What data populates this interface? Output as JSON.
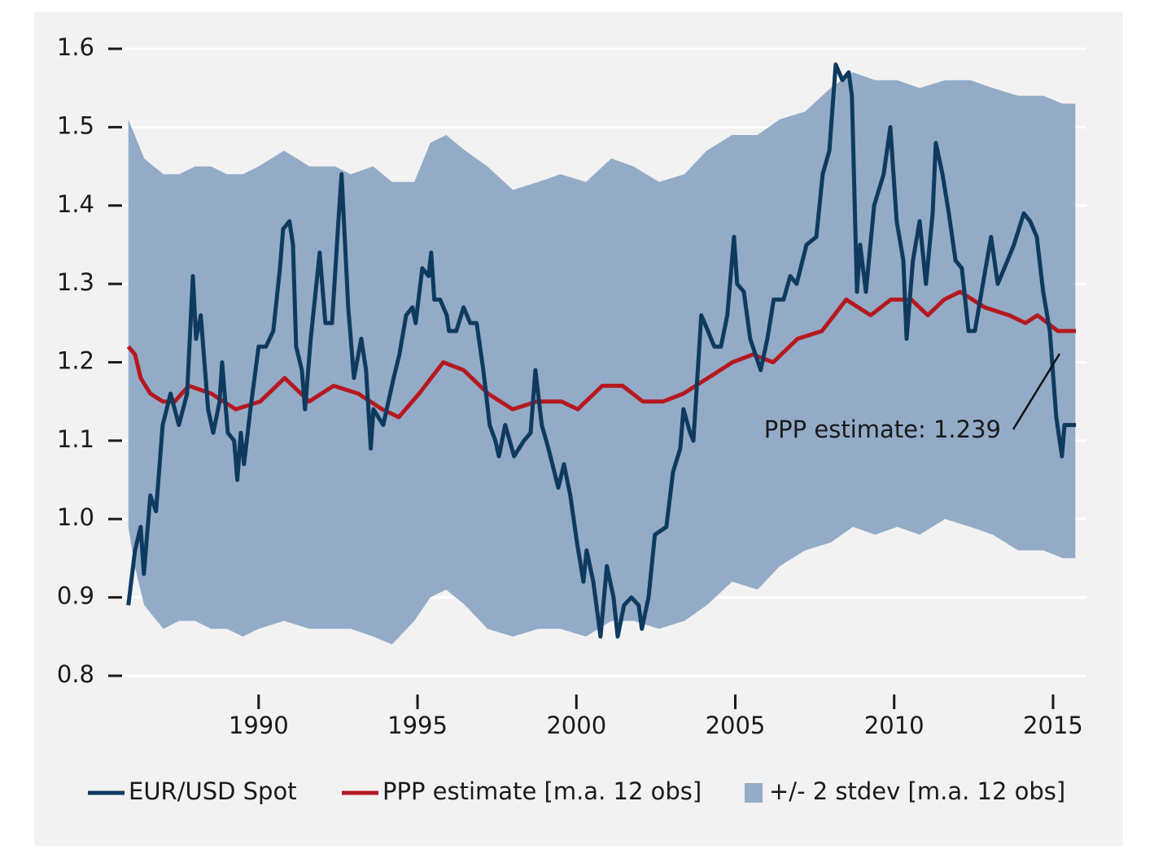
{
  "chart_data": {
    "type": "line",
    "xlim": [
      1985.6,
      2016.0
    ],
    "ylim": [
      0.77,
      1.63
    ],
    "xticks": [
      1990,
      1995,
      2000,
      2005,
      2010,
      2015
    ],
    "yticks": [
      0.8,
      0.9,
      {
        "value": 1.0,
        "label": "1.0"
      },
      1.1,
      1.2,
      1.3,
      1.4,
      1.5,
      1.6
    ],
    "grid": true,
    "legend": "bottom",
    "band": {
      "name": "+/- 2 stdev [m.a. 12 obs]",
      "color": "#93abc7",
      "x": [
        1985.9,
        1986.1,
        1986.4,
        1987.0,
        1987.5,
        1988.0,
        1988.5,
        1989.0,
        1989.5,
        1990.0,
        1990.8,
        1991.6,
        1992.4,
        1992.9,
        1993.6,
        1994.2,
        1994.9,
        1995.4,
        1995.9,
        1996.5,
        1997.2,
        1998.0,
        1998.8,
        1999.5,
        2000.3,
        2001.1,
        2001.8,
        2002.6,
        2003.4,
        2004.1,
        2004.9,
        2005.7,
        2006.4,
        2007.2,
        2008.0,
        2008.7,
        2009.4,
        2010.1,
        2010.8,
        2011.6,
        2012.4,
        2013.1,
        2013.9,
        2014.7,
        2015.3,
        2015.7
      ],
      "upper": [
        1.51,
        1.49,
        1.46,
        1.44,
        1.44,
        1.45,
        1.45,
        1.44,
        1.44,
        1.45,
        1.47,
        1.45,
        1.45,
        1.44,
        1.45,
        1.43,
        1.43,
        1.48,
        1.49,
        1.47,
        1.45,
        1.42,
        1.43,
        1.44,
        1.43,
        1.46,
        1.45,
        1.43,
        1.44,
        1.47,
        1.49,
        1.49,
        1.51,
        1.52,
        1.55,
        1.57,
        1.56,
        1.56,
        1.55,
        1.56,
        1.56,
        1.55,
        1.54,
        1.54,
        1.53,
        1.53
      ],
      "lower": [
        0.99,
        0.94,
        0.89,
        0.86,
        0.87,
        0.87,
        0.86,
        0.86,
        0.85,
        0.86,
        0.87,
        0.86,
        0.86,
        0.86,
        0.85,
        0.84,
        0.87,
        0.9,
        0.91,
        0.89,
        0.86,
        0.85,
        0.86,
        0.86,
        0.85,
        0.87,
        0.87,
        0.86,
        0.87,
        0.89,
        0.92,
        0.91,
        0.94,
        0.96,
        0.97,
        0.99,
        0.98,
        0.99,
        0.98,
        1.0,
        0.99,
        0.98,
        0.96,
        0.96,
        0.95,
        0.95
      ]
    },
    "series": [
      {
        "name": "EUR/USD Spot",
        "color": "#0f3a5f",
        "x": [
          1985.9,
          1986.11,
          1986.29,
          1986.39,
          1986.59,
          1986.77,
          1986.98,
          1987.23,
          1987.49,
          1987.75,
          1987.93,
          1988.03,
          1988.18,
          1988.41,
          1988.57,
          1988.77,
          1988.85,
          1989.03,
          1989.23,
          1989.33,
          1989.44,
          1989.54,
          1989.74,
          1990.0,
          1990.23,
          1990.46,
          1990.67,
          1990.77,
          1990.97,
          1991.08,
          1991.18,
          1991.36,
          1991.46,
          1991.64,
          1991.92,
          1992.1,
          1992.31,
          1992.51,
          1992.61,
          1992.82,
          1993.0,
          1993.23,
          1993.38,
          1993.53,
          1993.61,
          1993.92,
          1994.25,
          1994.43,
          1994.64,
          1994.84,
          1994.94,
          1995.15,
          1995.35,
          1995.43,
          1995.53,
          1995.71,
          1995.92,
          1995.99,
          1996.22,
          1996.45,
          1996.66,
          1996.86,
          1997.07,
          1997.27,
          1997.45,
          1997.56,
          1997.76,
          1998.04,
          1998.35,
          1998.56,
          1998.71,
          1998.91,
          1999.12,
          1999.43,
          1999.61,
          1999.81,
          2000.02,
          2000.22,
          2000.32,
          2000.53,
          2000.76,
          2000.96,
          2001.17,
          2001.3,
          2001.5,
          2001.73,
          2001.96,
          2002.06,
          2002.27,
          2002.47,
          2002.83,
          2003.04,
          2003.27,
          2003.37,
          2003.58,
          2003.68,
          2003.93,
          2004.14,
          2004.34,
          2004.55,
          2004.75,
          2004.96,
          2005.06,
          2005.27,
          2005.47,
          2005.8,
          2006.01,
          2006.21,
          2006.52,
          2006.73,
          2006.93,
          2007.24,
          2007.55,
          2007.75,
          2007.96,
          2008.16,
          2008.37,
          2008.57,
          2008.67,
          2008.83,
          2008.93,
          2009.11,
          2009.37,
          2009.67,
          2009.88,
          2010.08,
          2010.29,
          2010.39,
          2010.59,
          2010.8,
          2011.0,
          2011.21,
          2011.31,
          2011.52,
          2011.72,
          2011.93,
          2012.13,
          2012.34,
          2012.54,
          2012.75,
          2013.05,
          2013.26,
          2013.57,
          2013.77,
          2014.08,
          2014.28,
          2014.49,
          2014.69,
          2014.9,
          2015.1,
          2015.28,
          2015.36,
          2015.54,
          2015.72
        ],
        "values": [
          0.89,
          0.96,
          0.99,
          0.93,
          1.03,
          1.01,
          1.12,
          1.16,
          1.12,
          1.16,
          1.31,
          1.23,
          1.26,
          1.14,
          1.11,
          1.15,
          1.2,
          1.11,
          1.1,
          1.05,
          1.11,
          1.07,
          1.14,
          1.22,
          1.22,
          1.24,
          1.32,
          1.37,
          1.38,
          1.35,
          1.22,
          1.19,
          1.14,
          1.23,
          1.34,
          1.25,
          1.25,
          1.38,
          1.44,
          1.27,
          1.18,
          1.23,
          1.19,
          1.09,
          1.14,
          1.12,
          1.18,
          1.21,
          1.26,
          1.27,
          1.25,
          1.32,
          1.31,
          1.34,
          1.28,
          1.28,
          1.26,
          1.24,
          1.24,
          1.27,
          1.25,
          1.25,
          1.19,
          1.12,
          1.1,
          1.08,
          1.12,
          1.08,
          1.1,
          1.11,
          1.19,
          1.12,
          1.09,
          1.04,
          1.07,
          1.03,
          0.97,
          0.92,
          0.96,
          0.92,
          0.85,
          0.94,
          0.9,
          0.85,
          0.89,
          0.9,
          0.89,
          0.86,
          0.9,
          0.98,
          0.99,
          1.06,
          1.09,
          1.14,
          1.11,
          1.1,
          1.26,
          1.24,
          1.22,
          1.22,
          1.26,
          1.36,
          1.3,
          1.29,
          1.23,
          1.19,
          1.23,
          1.28,
          1.28,
          1.31,
          1.3,
          1.35,
          1.36,
          1.44,
          1.47,
          1.58,
          1.56,
          1.57,
          1.54,
          1.29,
          1.35,
          1.29,
          1.4,
          1.44,
          1.5,
          1.38,
          1.33,
          1.23,
          1.33,
          1.38,
          1.3,
          1.39,
          1.48,
          1.44,
          1.39,
          1.33,
          1.32,
          1.24,
          1.24,
          1.29,
          1.36,
          1.3,
          1.33,
          1.35,
          1.39,
          1.38,
          1.36,
          1.29,
          1.24,
          1.13,
          1.08,
          1.12,
          1.12,
          1.12
        ]
      },
      {
        "name": "PPP estimate [m.a. 12 obs]",
        "color": "#b5191f",
        "x": [
          1985.9,
          1986.11,
          1986.29,
          1986.59,
          1986.98,
          1987.36,
          1987.8,
          1988.51,
          1989.28,
          1990.05,
          1990.82,
          1991.59,
          1992.36,
          1993.13,
          1993.89,
          1994.41,
          1995.05,
          1995.81,
          1996.45,
          1997.22,
          1997.99,
          1998.76,
          1999.53,
          2000.04,
          2000.81,
          2001.45,
          2002.09,
          2002.73,
          2003.37,
          2004.14,
          2004.91,
          2005.55,
          2006.19,
          2006.96,
          2007.73,
          2008.49,
          2009.26,
          2009.9,
          2010.54,
          2011.06,
          2011.57,
          2012.08,
          2012.85,
          2013.62,
          2014.13,
          2014.51,
          2015.15,
          2015.72
        ],
        "values": [
          1.22,
          1.21,
          1.18,
          1.16,
          1.15,
          1.15,
          1.17,
          1.16,
          1.14,
          1.15,
          1.18,
          1.15,
          1.17,
          1.16,
          1.14,
          1.13,
          1.16,
          1.2,
          1.19,
          1.16,
          1.14,
          1.15,
          1.15,
          1.14,
          1.17,
          1.17,
          1.15,
          1.15,
          1.16,
          1.18,
          1.2,
          1.21,
          1.2,
          1.23,
          1.24,
          1.28,
          1.26,
          1.28,
          1.28,
          1.26,
          1.28,
          1.29,
          1.27,
          1.26,
          1.25,
          1.26,
          1.24,
          1.24
        ]
      }
    ],
    "annotations": [
      {
        "text": "PPP estimate: 1.239",
        "color": "#9e1a1f"
      }
    ]
  }
}
